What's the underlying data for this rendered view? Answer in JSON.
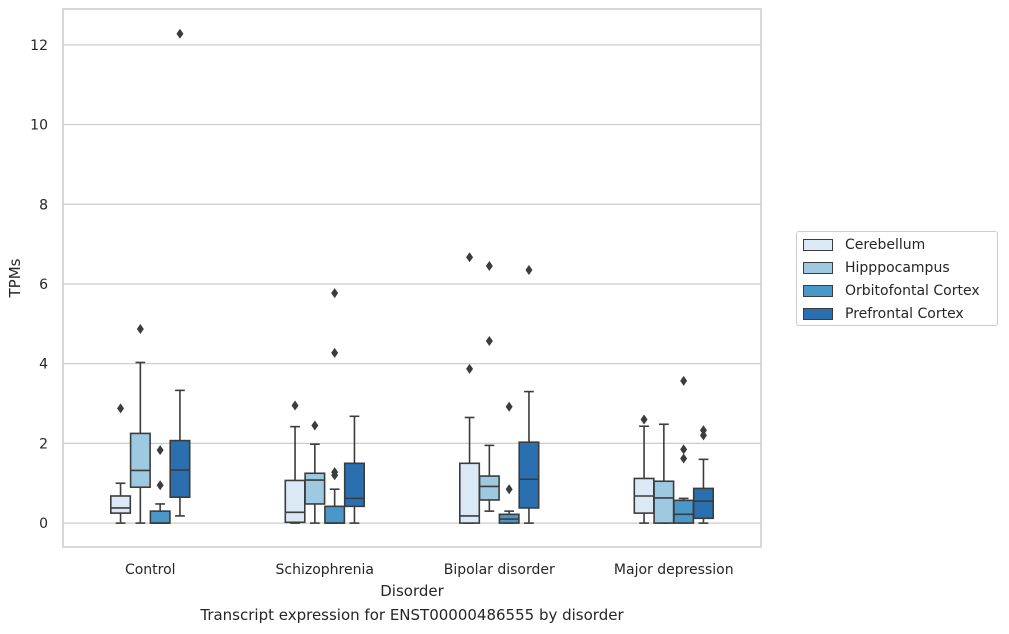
{
  "chart_data": {
    "type": "box",
    "xlabel": "Disorder",
    "ylabel": "TPMs",
    "ylim": [
      -0.6,
      12.9
    ],
    "yticks": [
      0,
      2,
      4,
      6,
      8,
      10,
      12
    ],
    "grid": true,
    "legend_position": "right",
    "categories": [
      "Control",
      "Schizophrenia",
      "Bipolar disorder",
      "Major depression"
    ],
    "series": [
      {
        "name": "Cerebellum",
        "color": "#dbe9f6",
        "boxes": [
          {
            "q1": 0.25,
            "median": 0.38,
            "q3": 0.68,
            "whisker_low": 0.0,
            "whisker_high": 1.0,
            "outliers": [
              2.88
            ]
          },
          {
            "q1": 0.02,
            "median": 0.27,
            "q3": 1.07,
            "whisker_low": 0.0,
            "whisker_high": 2.42,
            "outliers": [
              2.95
            ]
          },
          {
            "q1": 0.0,
            "median": 0.18,
            "q3": 1.5,
            "whisker_low": 0.0,
            "whisker_high": 2.65,
            "outliers": [
              3.87,
              6.67
            ]
          },
          {
            "q1": 0.25,
            "median": 0.68,
            "q3": 1.12,
            "whisker_low": 0.0,
            "whisker_high": 2.43,
            "outliers": [
              2.6
            ]
          }
        ]
      },
      {
        "name": "Hipppocampus",
        "color": "#9ecae1",
        "boxes": [
          {
            "q1": 0.9,
            "median": 1.32,
            "q3": 2.25,
            "whisker_low": 0.0,
            "whisker_high": 4.03,
            "outliers": [
              4.87
            ]
          },
          {
            "q1": 0.48,
            "median": 1.08,
            "q3": 1.25,
            "whisker_low": 0.0,
            "whisker_high": 1.98,
            "outliers": [
              2.45
            ]
          },
          {
            "q1": 0.58,
            "median": 0.92,
            "q3": 1.18,
            "whisker_low": 0.3,
            "whisker_high": 1.95,
            "outliers": [
              4.57,
              6.45
            ]
          },
          {
            "q1": 0.0,
            "median": 0.63,
            "q3": 1.05,
            "whisker_low": 0.0,
            "whisker_high": 2.48,
            "outliers": []
          }
        ]
      },
      {
        "name": "Orbitofontal Cortex",
        "color": "#4a98c9",
        "boxes": [
          {
            "q1": 0.0,
            "median": 0.0,
            "q3": 0.3,
            "whisker_low": 0.0,
            "whisker_high": 0.48,
            "outliers": [
              0.95,
              1.83
            ]
          },
          {
            "q1": 0.0,
            "median": 0.0,
            "q3": 0.42,
            "whisker_low": 0.0,
            "whisker_high": 0.85,
            "outliers": [
              1.2,
              1.28,
              4.27,
              5.77
            ]
          },
          {
            "q1": 0.0,
            "median": 0.1,
            "q3": 0.22,
            "whisker_low": 0.0,
            "whisker_high": 0.3,
            "outliers": [
              0.85,
              2.92
            ]
          },
          {
            "q1": 0.0,
            "median": 0.22,
            "q3": 0.57,
            "whisker_low": 0.0,
            "whisker_high": 0.62,
            "outliers": [
              1.62,
              1.85,
              3.57
            ]
          }
        ]
      },
      {
        "name": "Prefrontal Cortex",
        "color": "#2a6fb0",
        "boxes": [
          {
            "q1": 0.65,
            "median": 1.33,
            "q3": 2.07,
            "whisker_low": 0.18,
            "whisker_high": 3.33,
            "outliers": [
              12.28
            ]
          },
          {
            "q1": 0.42,
            "median": 0.62,
            "q3": 1.5,
            "whisker_low": 0.0,
            "whisker_high": 2.68,
            "outliers": []
          },
          {
            "q1": 0.38,
            "median": 1.1,
            "q3": 2.03,
            "whisker_low": 0.0,
            "whisker_high": 3.3,
            "outliers": [
              6.35
            ]
          },
          {
            "q1": 0.12,
            "median": 0.55,
            "q3": 0.87,
            "whisker_low": 0.0,
            "whisker_high": 1.6,
            "outliers": [
              2.2,
              2.33
            ]
          }
        ]
      }
    ]
  },
  "caption": "Transcript expression for ENST00000486555 by disorder"
}
